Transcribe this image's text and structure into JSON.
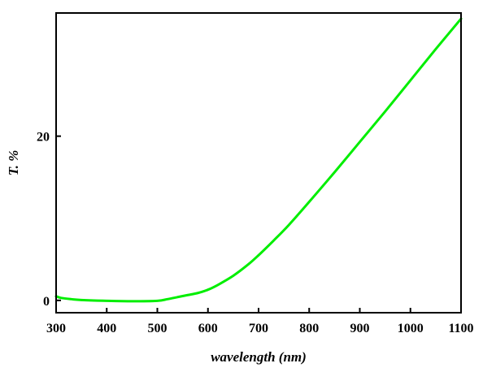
{
  "chart_data": {
    "type": "line",
    "xlabel": "wavelength (nm)",
    "ylabel": "T. %",
    "xlim": [
      300,
      1100
    ],
    "ylim": [
      -1.5,
      35
    ],
    "x_ticks": [
      300,
      400,
      500,
      600,
      700,
      800,
      900,
      1000,
      1100
    ],
    "y_ticks": [
      0,
      20
    ],
    "grid": false,
    "legend": "none",
    "series": [
      {
        "color": "#00ee00",
        "x": [
          300,
          310,
          330,
          350,
          400,
          450,
          500,
          520,
          540,
          560,
          580,
          600,
          620,
          650,
          680,
          700,
          730,
          760,
          800,
          850,
          900,
          950,
          1000,
          1050,
          1100
        ],
        "y": [
          0.5,
          0.3,
          0.15,
          0.05,
          -0.05,
          -0.1,
          -0.05,
          0.15,
          0.4,
          0.65,
          0.9,
          1.3,
          1.9,
          3.0,
          4.4,
          5.5,
          7.3,
          9.2,
          12.0,
          15.6,
          19.3,
          23.0,
          26.8,
          30.6,
          34.3
        ]
      }
    ]
  }
}
